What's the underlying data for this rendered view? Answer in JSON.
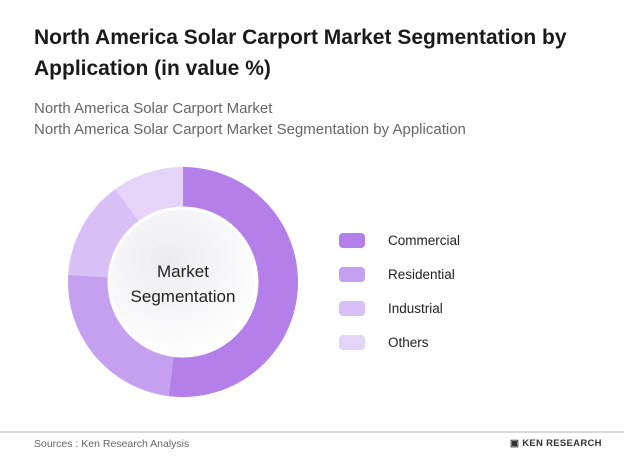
{
  "title": "North America Solar Carport Market Segmentation by Application (in value %)",
  "subtitle1": "North America Solar Carport Market",
  "subtitle2": "North America Solar Carport Market Segmentation by Application",
  "chart_data": {
    "type": "pie",
    "donut": true,
    "center_label": [
      "Market",
      "Segmentation"
    ],
    "categories": [
      "Commercial",
      "Residential",
      "Industrial",
      "Others"
    ],
    "values": [
      52,
      24,
      14,
      10
    ],
    "colors": [
      "#b47fe9",
      "#c59ff0",
      "#d8bff6",
      "#e5d4f8"
    ],
    "legend_position": "right"
  },
  "footer": {
    "source": "Sources : Ken Research Analysis",
    "logo": "KEN RESEARCH"
  }
}
